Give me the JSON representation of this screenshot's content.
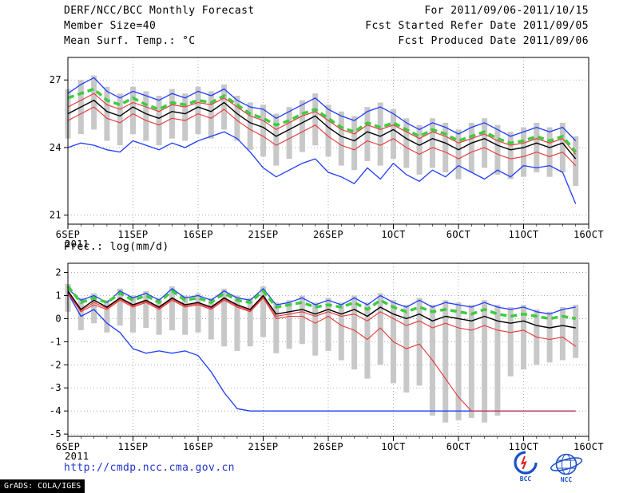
{
  "header": {
    "line1_left": "DERF/NCC/BCC Monthly Forecast",
    "line1_right": "For 2011/09/06-2011/10/15",
    "line2_left": "Member Size=40",
    "line2_right": "Fcst Started Refer Date 2011/09/05",
    "line3_left": "Mean Surf. Temp.: °C",
    "line3_right": "Fcst Produced Date 2011/09/06"
  },
  "footer": {
    "url": "http://cmdp.ncc.cma.gov.cn",
    "grads_credit": "GrADS: COLA/IGES",
    "logo1_label": "BCC",
    "logo2_label": "NCC"
  },
  "colors": {
    "blue_line": "#1e3cff",
    "red_line": "#e83535",
    "black_line": "#000000",
    "green_dash": "#3ecc3e",
    "bar_gray": "#c8c8c8",
    "url_blue": "#2233cc"
  },
  "chart_data": [
    {
      "type": "line",
      "title": "Mean Surf. Temp.: °C",
      "xlabel": "",
      "ylabel": "°C",
      "ylim": [
        20.6,
        28.0
      ],
      "yticks": [
        21,
        24,
        27
      ],
      "xlim": [
        0,
        40
      ],
      "xticks": [
        0,
        5,
        10,
        15,
        20,
        25,
        30,
        35,
        40
      ],
      "xtick_labels": [
        "6SEP",
        "11SEP",
        "16SEP",
        "21SEP",
        "26SEP",
        "1OCT",
        "6OCT",
        "11OCT",
        "16OCT"
      ],
      "year_label": "2011",
      "grid": true,
      "legend": "none",
      "bar_color": "#c8c8c8",
      "series": [
        {
          "name": "blue-upper",
          "color": "#1e3cff",
          "width": 1.3,
          "dash": "",
          "values": [
            26.4,
            26.8,
            27.1,
            26.5,
            26.2,
            26.5,
            26.3,
            26.1,
            26.4,
            26.2,
            26.5,
            26.3,
            26.6,
            26.1,
            25.8,
            25.7,
            25.3,
            25.6,
            25.9,
            26.2,
            25.7,
            25.4,
            25.2,
            25.6,
            25.8,
            25.5,
            25.1,
            24.8,
            25.1,
            24.9,
            24.6,
            24.9,
            25.1,
            24.8,
            24.5,
            24.7,
            24.9,
            24.7,
            24.9,
            24.3
          ]
        },
        {
          "name": "blue-lower",
          "color": "#1e3cff",
          "width": 1.3,
          "dash": "",
          "values": [
            24.0,
            24.2,
            24.1,
            23.9,
            23.8,
            24.3,
            24.1,
            23.9,
            24.2,
            24.0,
            24.3,
            24.5,
            24.7,
            24.4,
            23.8,
            23.1,
            22.7,
            23.0,
            23.3,
            23.5,
            22.9,
            22.7,
            22.4,
            23.1,
            22.6,
            23.3,
            22.8,
            22.5,
            23.0,
            22.7,
            23.2,
            22.9,
            22.6,
            23.0,
            22.7,
            23.2,
            23.1,
            23.2,
            22.9,
            21.5
          ]
        },
        {
          "name": "red-upper",
          "color": "#e83535",
          "width": 1.1,
          "dash": "",
          "values": [
            25.8,
            26.1,
            26.4,
            25.9,
            25.7,
            26.0,
            25.8,
            25.6,
            25.9,
            25.8,
            26.0,
            25.9,
            26.2,
            25.8,
            25.4,
            25.2,
            24.8,
            25.1,
            25.4,
            25.6,
            25.2,
            24.8,
            24.6,
            25.0,
            24.8,
            25.0,
            24.7,
            24.4,
            24.7,
            24.5,
            24.2,
            24.4,
            24.6,
            24.3,
            24.1,
            24.2,
            24.4,
            24.2,
            24.4,
            23.7
          ]
        },
        {
          "name": "red-lower",
          "color": "#e83535",
          "width": 1.1,
          "dash": "",
          "values": [
            25.2,
            25.5,
            25.8,
            25.3,
            25.1,
            25.5,
            25.2,
            25.0,
            25.3,
            25.2,
            25.5,
            25.3,
            25.7,
            25.2,
            24.8,
            24.5,
            24.1,
            24.4,
            24.7,
            25.0,
            24.5,
            24.1,
            23.9,
            24.3,
            24.1,
            24.4,
            24.0,
            23.7,
            24.0,
            23.8,
            23.5,
            23.8,
            24.0,
            23.7,
            23.5,
            23.6,
            23.8,
            23.6,
            23.8,
            23.2
          ]
        },
        {
          "name": "black-mean",
          "color": "#000000",
          "width": 1.4,
          "dash": "",
          "values": [
            25.5,
            25.8,
            26.1,
            25.6,
            25.4,
            25.8,
            25.5,
            25.3,
            25.6,
            25.5,
            25.8,
            25.6,
            26.0,
            25.5,
            25.1,
            24.9,
            24.5,
            24.8,
            25.1,
            25.4,
            24.9,
            24.5,
            24.3,
            24.7,
            24.5,
            24.8,
            24.4,
            24.1,
            24.4,
            24.2,
            23.9,
            24.2,
            24.4,
            24.1,
            23.9,
            24.0,
            24.2,
            24.0,
            24.2,
            23.5
          ]
        },
        {
          "name": "green-dashed",
          "color": "#3ecc3e",
          "width": 3.5,
          "dash": "8,5",
          "values": [
            26.2,
            26.4,
            26.6,
            26.1,
            25.9,
            26.2,
            25.9,
            25.7,
            26.0,
            25.9,
            26.1,
            26.0,
            26.3,
            25.9,
            25.5,
            25.3,
            25.0,
            25.2,
            25.5,
            25.7,
            25.3,
            24.9,
            24.7,
            25.1,
            24.9,
            25.1,
            24.8,
            24.5,
            24.8,
            24.6,
            24.3,
            24.5,
            24.7,
            24.4,
            24.2,
            24.3,
            24.5,
            24.3,
            24.5,
            23.8
          ]
        }
      ],
      "bars": {
        "high": [
          26.6,
          27.0,
          27.2,
          26.7,
          26.4,
          26.7,
          26.5,
          26.3,
          26.6,
          26.4,
          26.7,
          26.5,
          26.8,
          26.3,
          26.0,
          25.9,
          25.5,
          25.8,
          26.1,
          26.4,
          25.9,
          25.6,
          25.4,
          25.8,
          26.0,
          25.7,
          25.3,
          25.0,
          25.3,
          25.1,
          24.8,
          25.1,
          25.3,
          25.0,
          24.7,
          24.9,
          25.1,
          24.9,
          25.1,
          24.5
        ],
        "low": [
          24.4,
          24.6,
          24.8,
          24.3,
          24.1,
          24.6,
          24.3,
          24.1,
          24.4,
          24.3,
          24.6,
          24.4,
          24.8,
          24.3,
          23.9,
          23.6,
          23.2,
          23.5,
          23.8,
          24.1,
          23.6,
          23.2,
          23.0,
          23.4,
          23.2,
          23.5,
          23.1,
          22.8,
          23.1,
          22.9,
          22.6,
          22.9,
          23.1,
          22.8,
          22.6,
          22.7,
          22.9,
          22.7,
          22.9,
          22.3
        ]
      }
    },
    {
      "type": "line",
      "title": "Prec.: log(mm/d)",
      "xlabel": "",
      "ylabel": "log(mm/d)",
      "ylim": [
        -5.1,
        2.4
      ],
      "yticks": [
        -5,
        -4,
        -3,
        -2,
        -1,
        0,
        1,
        2
      ],
      "xlim": [
        0,
        40
      ],
      "xticks": [
        0,
        5,
        10,
        15,
        20,
        25,
        30,
        35,
        40
      ],
      "xtick_labels": [
        "6SEP",
        "11SEP",
        "16SEP",
        "21SEP",
        "26SEP",
        "1OCT",
        "6OCT",
        "11OCT",
        "16OCT"
      ],
      "year_label": "2011",
      "grid": true,
      "legend": "none",
      "bar_color": "#c8c8c8",
      "series": [
        {
          "name": "blue-upper",
          "color": "#1e3cff",
          "width": 1.3,
          "dash": "",
          "values": [
            1.3,
            0.8,
            1.0,
            0.7,
            1.2,
            0.9,
            1.1,
            0.8,
            1.3,
            0.9,
            1.0,
            0.8,
            1.2,
            0.9,
            0.8,
            1.3,
            0.6,
            0.7,
            0.9,
            0.6,
            0.8,
            0.6,
            0.9,
            0.6,
            1.0,
            0.7,
            0.5,
            0.8,
            0.5,
            0.7,
            0.6,
            0.5,
            0.7,
            0.5,
            0.4,
            0.5,
            0.3,
            0.2,
            0.4,
            0.5
          ]
        },
        {
          "name": "blue-lower",
          "color": "#1e3cff",
          "width": 1.3,
          "dash": "",
          "values": [
            1.1,
            0.1,
            0.4,
            -0.2,
            -0.6,
            -1.3,
            -1.5,
            -1.4,
            -1.5,
            -1.4,
            -1.6,
            -2.3,
            -3.2,
            -3.9,
            -4.0,
            -4.0,
            -4.0,
            -4.0,
            -4.0,
            -4.0,
            -4.0,
            -4.0,
            -4.0,
            -4.0,
            -4.0,
            -4.0,
            -4.0,
            -4.0,
            -4.0,
            -4.0,
            -4.0,
            -4.0,
            -4.0,
            -4.0,
            -4.0,
            -4.0,
            -4.0,
            -4.0,
            -4.0,
            -4.0
          ]
        },
        {
          "name": "red-upper",
          "color": "#e83535",
          "width": 1.1,
          "dash": "",
          "values": [
            1.15,
            0.35,
            0.7,
            0.45,
            0.85,
            0.55,
            0.75,
            0.45,
            0.85,
            0.55,
            0.65,
            0.45,
            0.85,
            0.55,
            0.35,
            0.95,
            0.1,
            0.2,
            0.3,
            0.1,
            0.3,
            0.1,
            0.2,
            -0.1,
            0.3,
            0.0,
            -0.3,
            -0.1,
            -0.4,
            -0.2,
            -0.4,
            -0.5,
            -0.3,
            -0.5,
            -0.6,
            -0.5,
            -0.8,
            -0.9,
            -0.8,
            -1.2
          ]
        },
        {
          "name": "red-lower",
          "color": "#e83535",
          "width": 1.1,
          "dash": "",
          "values": [
            1.1,
            0.3,
            0.6,
            0.4,
            0.8,
            0.5,
            0.7,
            0.4,
            0.8,
            0.5,
            0.6,
            0.4,
            0.8,
            0.5,
            0.3,
            0.9,
            0.0,
            0.1,
            0.1,
            -0.2,
            0.1,
            -0.3,
            -0.5,
            -0.9,
            -0.4,
            -1.0,
            -1.3,
            -1.1,
            -1.8,
            -2.6,
            -3.4,
            -4.0,
            -4.0,
            -4.0,
            -4.0,
            -4.0,
            -4.0,
            -4.0,
            -4.0,
            -4.0
          ]
        },
        {
          "name": "black-mean",
          "color": "#000000",
          "width": 1.4,
          "dash": "",
          "values": [
            1.2,
            0.4,
            0.8,
            0.5,
            0.9,
            0.6,
            0.8,
            0.5,
            0.9,
            0.6,
            0.7,
            0.5,
            0.9,
            0.6,
            0.4,
            1.0,
            0.2,
            0.3,
            0.4,
            0.2,
            0.4,
            0.2,
            0.4,
            0.1,
            0.5,
            0.2,
            0.0,
            0.2,
            -0.1,
            0.1,
            0.0,
            -0.1,
            0.1,
            -0.1,
            -0.2,
            -0.1,
            -0.3,
            -0.4,
            -0.3,
            -0.4
          ]
        },
        {
          "name": "green-dashed",
          "color": "#3ecc3e",
          "width": 3.5,
          "dash": "8,5",
          "values": [
            1.4,
            0.7,
            0.9,
            0.7,
            1.1,
            0.8,
            1.0,
            0.7,
            1.2,
            0.8,
            0.9,
            0.7,
            1.1,
            0.8,
            0.7,
            1.2,
            0.5,
            0.6,
            0.7,
            0.5,
            0.6,
            0.5,
            0.7,
            0.4,
            0.8,
            0.5,
            0.3,
            0.5,
            0.3,
            0.4,
            0.3,
            0.2,
            0.4,
            0.2,
            0.1,
            0.2,
            0.1,
            0.0,
            0.1,
            0.0
          ]
        }
      ],
      "bars": {
        "high": [
          1.5,
          0.9,
          1.1,
          0.8,
          1.3,
          1.0,
          1.2,
          0.9,
          1.4,
          1.0,
          1.1,
          0.9,
          1.3,
          1.0,
          0.9,
          1.4,
          0.7,
          0.8,
          1.0,
          0.7,
          0.9,
          0.7,
          1.0,
          0.7,
          1.1,
          0.8,
          0.6,
          0.9,
          0.6,
          0.8,
          0.7,
          0.6,
          0.8,
          0.6,
          0.5,
          0.6,
          0.4,
          0.3,
          0.5,
          0.6
        ],
        "low": [
          0.3,
          -0.5,
          -0.2,
          -0.6,
          -0.3,
          -0.6,
          -0.4,
          -0.7,
          -0.5,
          -0.7,
          -0.6,
          -0.9,
          -1.2,
          -1.4,
          -1.2,
          -0.8,
          -1.5,
          -1.3,
          -1.1,
          -1.6,
          -1.4,
          -1.8,
          -2.2,
          -2.6,
          -2.0,
          -2.8,
          -3.2,
          -2.9,
          -4.2,
          -4.5,
          -4.4,
          -4.3,
          -4.5,
          -4.2,
          -2.5,
          -2.2,
          -2.0,
          -1.9,
          -1.8,
          -1.7
        ]
      }
    }
  ]
}
